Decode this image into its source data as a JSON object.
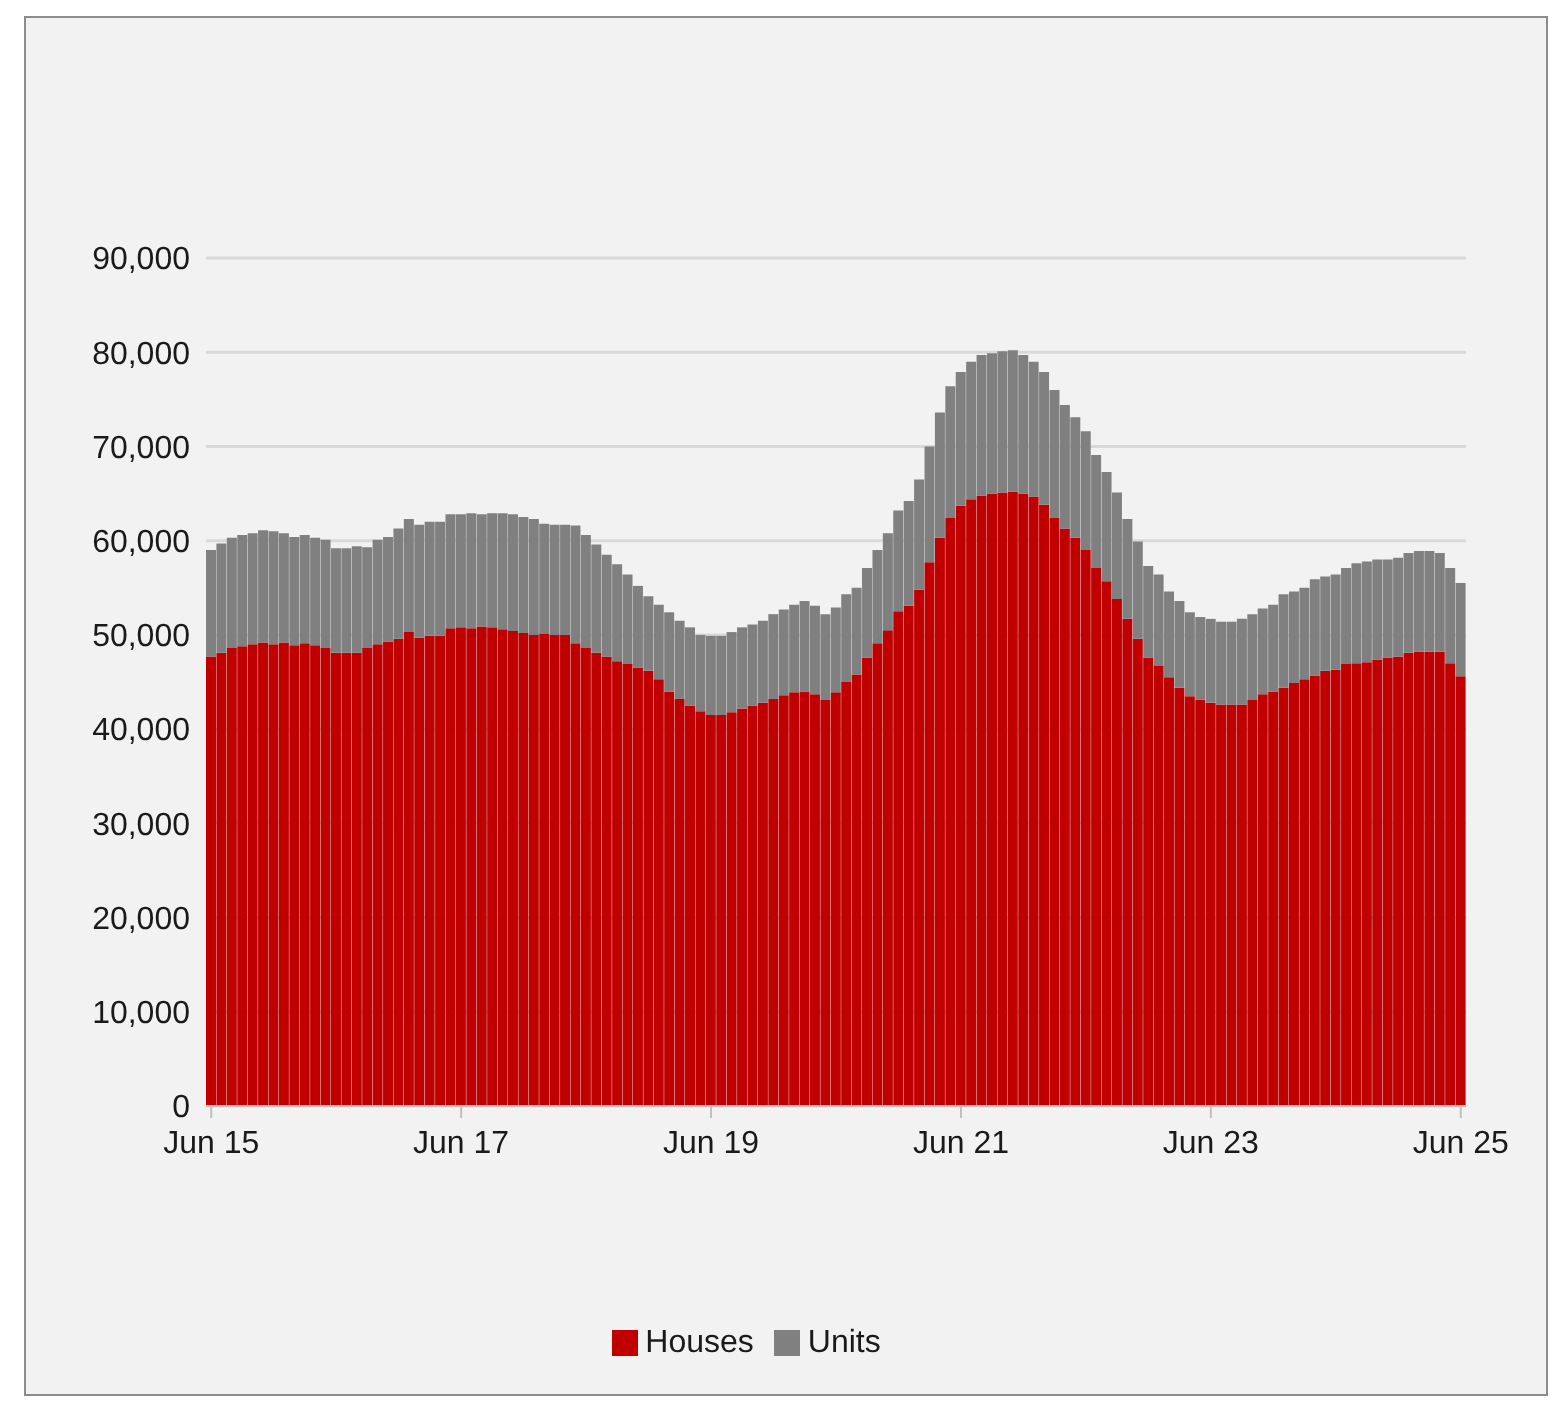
{
  "chart_data": {
    "type": "bar",
    "stacked": true,
    "grid": "y",
    "legend": "bottom",
    "categories": [
      "Jun 15",
      null,
      null,
      null,
      null,
      null,
      null,
      null,
      null,
      null,
      null,
      null,
      null,
      null,
      null,
      null,
      null,
      null,
      null,
      null,
      null,
      null,
      null,
      null,
      "Jun 17",
      null,
      null,
      null,
      null,
      null,
      null,
      null,
      null,
      null,
      null,
      null,
      null,
      null,
      null,
      null,
      null,
      null,
      null,
      null,
      null,
      null,
      null,
      null,
      "Jun 19",
      null,
      null,
      null,
      null,
      null,
      null,
      null,
      null,
      null,
      null,
      null,
      null,
      null,
      null,
      null,
      null,
      null,
      null,
      null,
      null,
      null,
      null,
      null,
      "Jun 21",
      null,
      null,
      null,
      null,
      null,
      null,
      null,
      null,
      null,
      null,
      null,
      null,
      null,
      null,
      null,
      null,
      null,
      null,
      null,
      null,
      null,
      null,
      null,
      "Jun 23",
      null,
      null,
      null,
      null,
      null,
      null,
      null,
      null,
      null,
      null,
      null,
      null,
      null,
      null,
      null,
      null,
      null,
      null,
      null,
      null,
      null,
      null,
      null,
      "Jun 25"
    ],
    "ylim": [
      0,
      90000
    ],
    "yticks": [
      {
        "value": 0,
        "label": "0"
      },
      {
        "value": 10000,
        "label": "10,000"
      },
      {
        "value": 20000,
        "label": "20,000"
      },
      {
        "value": 30000,
        "label": "30,000"
      },
      {
        "value": 40000,
        "label": "40,000"
      },
      {
        "value": 50000,
        "label": "50,000"
      },
      {
        "value": 60000,
        "label": "60,000"
      },
      {
        "value": 70000,
        "label": "70,000"
      },
      {
        "value": 80000,
        "label": "80,000"
      },
      {
        "value": 90000,
        "label": "90,000"
      }
    ],
    "series": [
      {
        "name": "Houses",
        "color": "#c00000",
        "values": [
          47700,
          48100,
          48600,
          48800,
          49000,
          49200,
          49000,
          49200,
          48900,
          49100,
          48900,
          48600,
          48100,
          48100,
          48100,
          48600,
          49000,
          49300,
          49600,
          50300,
          49700,
          49900,
          49900,
          50700,
          50800,
          50700,
          50900,
          50800,
          50600,
          50400,
          50200,
          50000,
          50100,
          50000,
          50000,
          49100,
          48600,
          48100,
          47700,
          47200,
          46900,
          46500,
          46200,
          45300,
          44000,
          43200,
          42500,
          41900,
          41500,
          41500,
          41800,
          42200,
          42500,
          42800,
          43200,
          43600,
          43900,
          44000,
          43700,
          43100,
          43900,
          45000,
          45800,
          47600,
          49100,
          50500,
          52500,
          53100,
          54800,
          57700,
          60300,
          62400,
          63700,
          64400,
          64800,
          65000,
          65100,
          65200,
          65000,
          64700,
          63800,
          62400,
          61300,
          60300,
          59000,
          57100,
          55700,
          53800,
          51700,
          49600,
          47600,
          46700,
          45500,
          44400,
          43500,
          43100,
          42800,
          42600,
          42600,
          42600,
          43100,
          43700,
          44000,
          44400,
          44900,
          45300,
          45700,
          46200,
          46300,
          46900,
          47000,
          47100,
          47400,
          47600,
          47700,
          48100,
          48200,
          48200,
          48200,
          47000,
          45600
        ]
      },
      {
        "name": "Units",
        "color": "#808080",
        "values": [
          11300,
          11600,
          11700,
          11800,
          11800,
          11900,
          12000,
          11600,
          11500,
          11500,
          11400,
          11500,
          11100,
          11100,
          11300,
          10700,
          11100,
          11100,
          11700,
          12000,
          12000,
          12100,
          12100,
          12100,
          12000,
          12200,
          11900,
          12100,
          12300,
          12400,
          12300,
          12300,
          11700,
          11700,
          11700,
          12500,
          12000,
          11500,
          10800,
          10300,
          9500,
          8700,
          7900,
          7900,
          8400,
          8300,
          8300,
          8100,
          8400,
          8400,
          8500,
          8600,
          8600,
          8700,
          9000,
          9100,
          9300,
          9600,
          9400,
          9100,
          9000,
          9300,
          9200,
          9500,
          9900,
          10300,
          10700,
          11100,
          11700,
          12300,
          13300,
          14000,
          14200,
          14600,
          14900,
          14900,
          15000,
          15000,
          14700,
          14300,
          14100,
          13600,
          13100,
          12800,
          12600,
          12000,
          11600,
          11300,
          10600,
          10300,
          9700,
          9700,
          9100,
          9200,
          8900,
          8800,
          8900,
          8800,
          8800,
          9100,
          9100,
          9100,
          9200,
          9900,
          9700,
          9700,
          10200,
          10000,
          10100,
          10200,
          10600,
          10700,
          10600,
          10400,
          10500,
          10600,
          10700,
          10700,
          10500,
          10100,
          9900
        ]
      }
    ]
  }
}
